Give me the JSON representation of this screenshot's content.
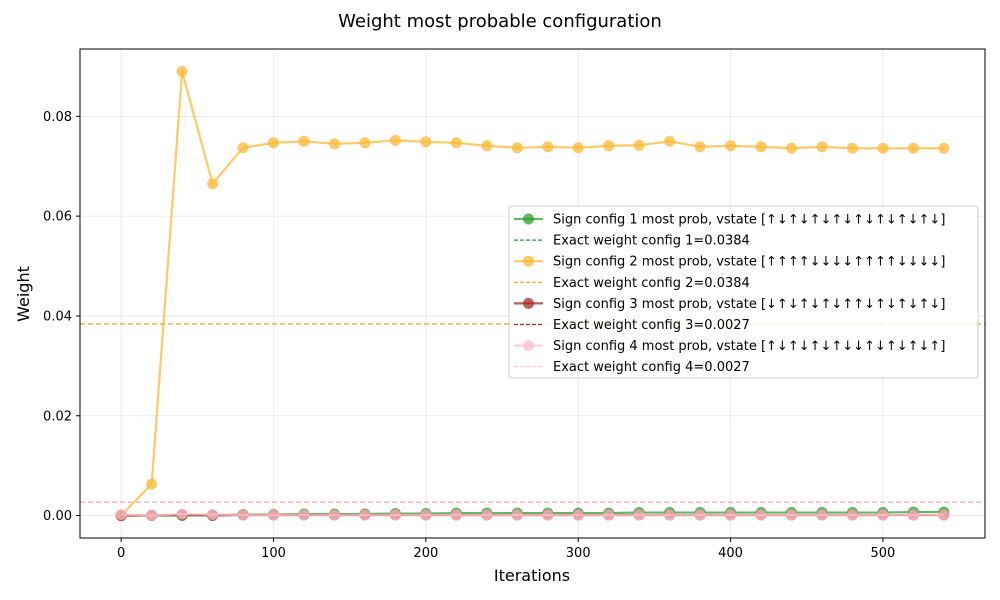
{
  "chart_data": {
    "type": "line",
    "title": "Weight most probable configuration",
    "xlabel": "Iterations",
    "ylabel": "Weight",
    "xlim": [
      -27,
      567
    ],
    "ylim": [
      -0.0045,
      0.0935
    ],
    "xticks": [
      0,
      100,
      200,
      300,
      400,
      500
    ],
    "yticks": [
      0.0,
      0.02,
      0.04,
      0.06,
      0.08
    ],
    "ytick_labels": [
      "0.00",
      "0.02",
      "0.04",
      "0.06",
      "0.08"
    ],
    "grid": true,
    "legend_position": "center-right",
    "x": [
      0,
      20,
      40,
      60,
      80,
      100,
      120,
      140,
      160,
      180,
      200,
      220,
      240,
      260,
      280,
      300,
      320,
      340,
      360,
      380,
      400,
      420,
      440,
      460,
      480,
      500,
      520,
      540
    ],
    "series": [
      {
        "name": "Sign config 1 most prob, vstate [↑↓↑↓↑↓↑↓↑↓↑↓↑↓↑↓]",
        "color": "#2ca02c",
        "values": [
          0.0,
          0.0,
          0.0,
          0.0001,
          0.0002,
          0.0002,
          0.0003,
          0.0003,
          0.0003,
          0.0004,
          0.0004,
          0.0005,
          0.0005,
          0.0005,
          0.0005,
          0.0005,
          0.0005,
          0.0006,
          0.0006,
          0.0006,
          0.0006,
          0.0006,
          0.0006,
          0.0006,
          0.0006,
          0.0006,
          0.0007,
          0.0007
        ]
      },
      {
        "name": "Sign config 2 most prob, vstate [↑↑↑↑↓↓↓↓↑↑↑↑↓↓↓↓]",
        "color": "#ffb733",
        "values": [
          0.0,
          0.0063,
          0.089,
          0.0665,
          0.0737,
          0.0747,
          0.075,
          0.0745,
          0.0747,
          0.0752,
          0.0749,
          0.0747,
          0.0741,
          0.0737,
          0.0739,
          0.0737,
          0.0741,
          0.0742,
          0.075,
          0.0739,
          0.0741,
          0.0739,
          0.0736,
          0.0739,
          0.0736,
          0.0736,
          0.0736,
          0.0736
        ]
      },
      {
        "name": "Sign config 3 most prob, vstate [↓↑↓↑↓↑↓↑↑↓↑↓↑↓↑↓]",
        "color": "#a52a2a",
        "values": [
          0.0,
          0.0,
          0.0001,
          0.0,
          0.0001,
          0.0001,
          0.0001,
          0.0001,
          0.0001,
          0.0001,
          0.0001,
          0.0001,
          0.0001,
          0.0001,
          0.0001,
          0.0001,
          0.0001,
          0.0001,
          0.0001,
          0.0001,
          0.0001,
          0.0001,
          0.0001,
          0.0001,
          0.0001,
          0.0001,
          0.0001,
          0.0001
        ]
      },
      {
        "name": "Sign config 4 most prob, vstate [↑↓↑↓↑↓↑↓↓↑↓↑↓↑↓↑]",
        "color": "#ffc0cb",
        "values": [
          0.0002,
          0.0,
          0.0003,
          0.0002,
          0.0001,
          0.0001,
          0.0001,
          0.0001,
          0.0001,
          0.0001,
          0.0001,
          0.0001,
          0.0001,
          0.0001,
          0.0001,
          0.0001,
          0.0001,
          0.0001,
          0.0001,
          0.0001,
          0.0001,
          0.0001,
          0.0001,
          0.0001,
          0.0001,
          0.0001,
          0.0001,
          0.0001
        ]
      }
    ],
    "reference_lines": [
      {
        "name": "Exact weight config 1=0.0384",
        "value": 0.0384,
        "color": "#2ca02c"
      },
      {
        "name": "Exact weight config 2=0.0384",
        "value": 0.0384,
        "color": "#ffa500"
      },
      {
        "name": "Exact weight config 3=0.0027",
        "value": 0.0027,
        "color": "#a52a2a"
      },
      {
        "name": "Exact weight config 4=0.0027",
        "value": 0.0027,
        "color": "#ffc0cb"
      }
    ]
  }
}
